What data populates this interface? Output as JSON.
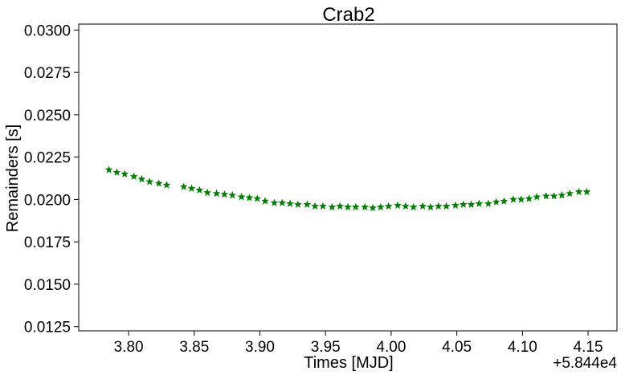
{
  "chart_data": {
    "type": "scatter",
    "title": "Crab2",
    "xlabel": "Times [MJD]",
    "ylabel": "Remainders [s]",
    "x_offset_label": "+5.844e4",
    "xlim": [
      3.762,
      4.172
    ],
    "ylim": [
      0.01225,
      0.03035
    ],
    "xticks": [
      3.8,
      3.85,
      3.9,
      3.95,
      4.0,
      4.05,
      4.1,
      4.15
    ],
    "xtick_labels": [
      "3.80",
      "3.85",
      "3.90",
      "3.95",
      "4.00",
      "4.05",
      "4.10",
      "4.15"
    ],
    "yticks": [
      0.0125,
      0.015,
      0.0175,
      0.02,
      0.0225,
      0.025,
      0.0275,
      0.03
    ],
    "ytick_labels": [
      "0.0125",
      "0.0150",
      "0.0175",
      "0.0200",
      "0.0225",
      "0.0250",
      "0.0275",
      "0.0300"
    ],
    "grid": false,
    "marker": "star",
    "color": "#008000",
    "x": [
      3.785,
      3.791,
      3.797,
      3.804,
      3.81,
      3.816,
      3.823,
      3.829,
      3.842,
      3.848,
      3.854,
      3.86,
      3.867,
      3.873,
      3.879,
      3.886,
      3.892,
      3.898,
      3.904,
      3.911,
      3.917,
      3.923,
      3.929,
      3.936,
      3.942,
      3.948,
      3.955,
      3.961,
      3.967,
      3.973,
      3.98,
      3.986,
      3.992,
      3.998,
      4.005,
      4.011,
      4.017,
      4.024,
      4.03,
      4.036,
      4.042,
      4.049,
      4.055,
      4.061,
      4.067,
      4.074,
      4.08,
      4.086,
      4.093,
      4.099,
      4.105,
      4.111,
      4.118,
      4.124,
      4.13,
      4.136,
      4.143,
      4.149
    ],
    "y": [
      0.02175,
      0.0216,
      0.0215,
      0.02135,
      0.0212,
      0.02105,
      0.02095,
      0.02085,
      0.02075,
      0.02065,
      0.02055,
      0.0204,
      0.02035,
      0.0203,
      0.02025,
      0.02015,
      0.0201,
      0.02005,
      0.0199,
      0.0198,
      0.0198,
      0.01975,
      0.0197,
      0.0197,
      0.0196,
      0.0196,
      0.01955,
      0.0196,
      0.01955,
      0.01955,
      0.01955,
      0.0195,
      0.01955,
      0.0196,
      0.01965,
      0.0196,
      0.01955,
      0.0196,
      0.01955,
      0.0196,
      0.0196,
      0.01965,
      0.0197,
      0.0197,
      0.01975,
      0.01975,
      0.01985,
      0.0199,
      0.02,
      0.02,
      0.02005,
      0.02015,
      0.0202,
      0.0202,
      0.02025,
      0.02035,
      0.02045,
      0.02045
    ]
  }
}
